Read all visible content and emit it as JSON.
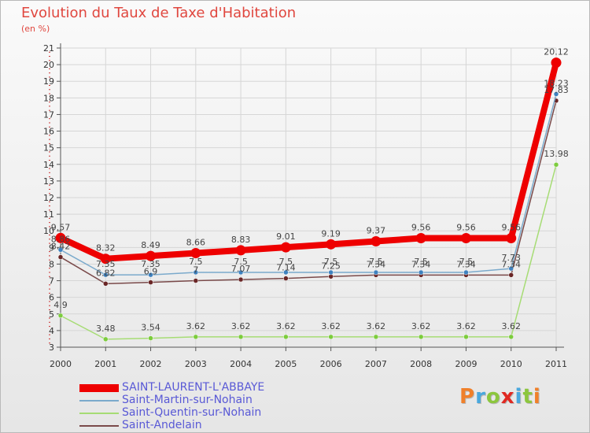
{
  "title": "Evolution du Taux de Taxe d'Habitation",
  "subtitle": "(en %)",
  "logo": {
    "text": "Proxiti",
    "letter_colors": [
      "#f0802a",
      "#4aa8de",
      "#8cc63e",
      "#e02922",
      "#4aa8de",
      "#8cc63e",
      "#f0802a"
    ]
  },
  "colors": {
    "axis": "#555555",
    "grid": "#d6d6d6",
    "tick_red": "#cc3333",
    "value_label": "#444444"
  },
  "chart_data": {
    "type": "line",
    "title": "Evolution du Taux de Taxe d'Habitation",
    "ylabel": "(en %)",
    "xlabel": "",
    "x": [
      "2000",
      "2001",
      "2002",
      "2003",
      "2004",
      "2005",
      "2006",
      "2007",
      "2008",
      "2009",
      "2010",
      "2011"
    ],
    "ylim": [
      3,
      21
    ],
    "yticks": [
      "3",
      "4",
      "5",
      "6",
      "7",
      "8",
      "9",
      "10",
      "11",
      "12",
      "13",
      "14",
      "15",
      "16",
      "17",
      "18",
      "19",
      "20",
      "21"
    ],
    "grid": true,
    "legend_position": "bottom-left",
    "series": [
      {
        "name": "SAINT-LAURENT-L'ABBAYE",
        "values": [
          9.57,
          8.32,
          8.49,
          8.66,
          8.83,
          9.01,
          9.19,
          9.37,
          9.56,
          9.56,
          9.56,
          20.12
        ],
        "labels": [
          "9.57",
          "8.32",
          "8.49",
          "8.66",
          "8.83",
          "9.01",
          "9.19",
          "9.37",
          "9.56",
          "9.56",
          "9.56",
          "20.12"
        ],
        "color": "#ee0000",
        "marker": "#ee0000",
        "width": 8
      },
      {
        "name": "Saint-Martin-sur-Nohain",
        "values": [
          8.86,
          7.35,
          7.35,
          7.5,
          7.5,
          7.5,
          7.5,
          7.5,
          7.5,
          7.5,
          7.73,
          18.23
        ],
        "labels": [
          "8.86",
          "7.35",
          "7.35",
          "7.5",
          "7.5",
          "7.5",
          "7.5",
          "7.5",
          "7.5",
          "7.5",
          "7.73",
          "18.23"
        ],
        "color": "#7baacc",
        "marker": "#3f82bf",
        "width": 1.5
      },
      {
        "name": "Saint-Quentin-sur-Nohain",
        "values": [
          4.9,
          3.48,
          3.54,
          3.62,
          3.62,
          3.62,
          3.62,
          3.62,
          3.62,
          3.62,
          3.62,
          13.98
        ],
        "labels": [
          "4.9",
          "3.48",
          "3.54",
          "3.62",
          "3.62",
          "3.62",
          "3.62",
          "3.62",
          "3.62",
          "3.62",
          "3.62",
          "13.98"
        ],
        "color": "#a6dc74",
        "marker": "#7ccc3d",
        "width": 1.5
      },
      {
        "name": "Saint-Andelain",
        "values": [
          8.42,
          6.82,
          6.9,
          7.0,
          7.07,
          7.14,
          7.25,
          7.34,
          7.34,
          7.34,
          7.34,
          17.83
        ],
        "labels": [
          "8.42",
          "6.82",
          "6.9",
          "7",
          "7.07",
          "7.14",
          "7.25",
          "7.34",
          "7.34",
          "7.34",
          "7.34",
          "17.83"
        ],
        "color": "#7a4a4a",
        "marker": "#6a2626",
        "width": 1.5
      }
    ]
  }
}
